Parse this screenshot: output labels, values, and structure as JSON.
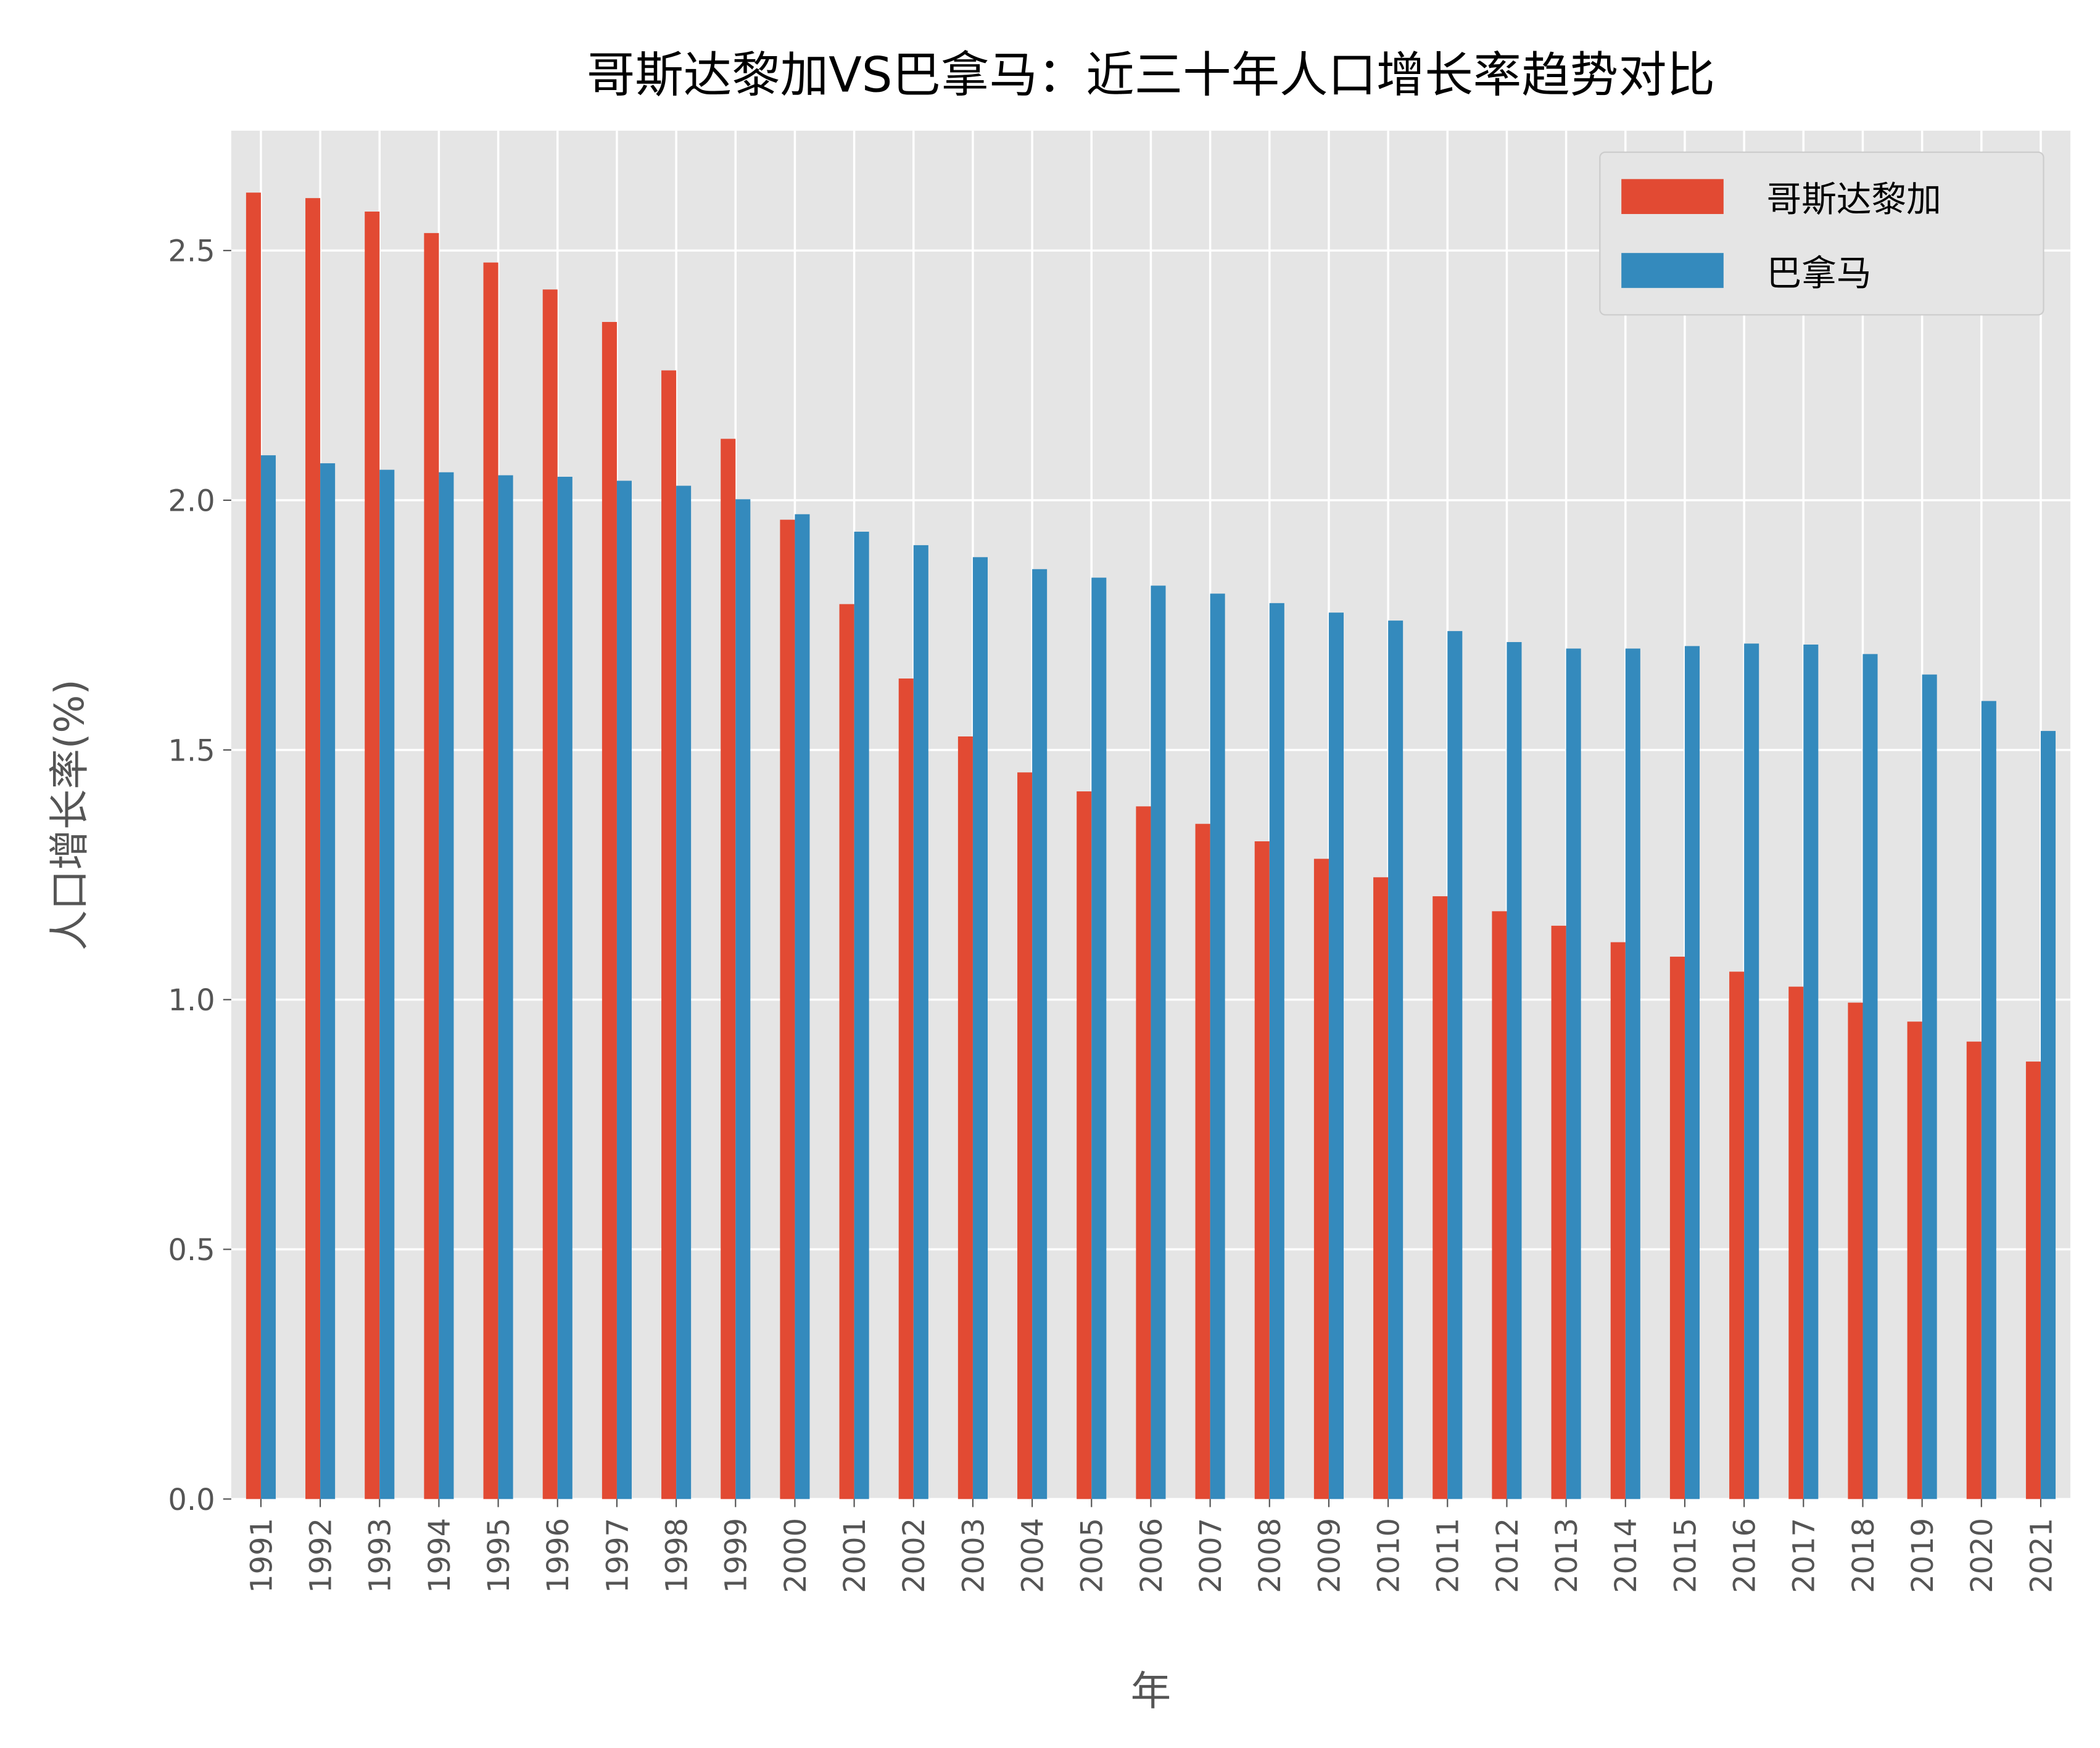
{
  "chart_data": {
    "type": "bar",
    "title": "哥斯达黎加VS巴拿马：近三十年人口增长率趋势对比",
    "xlabel": "年",
    "ylabel": "人口增长率(%)",
    "ylim": [
      0,
      2.74
    ],
    "yticks": [
      "0.0",
      "0.5",
      "1.0",
      "1.5",
      "2.0",
      "2.5"
    ],
    "grid": true,
    "legend_position": "top-right",
    "categories": [
      "1991",
      "1992",
      "1993",
      "1994",
      "1995",
      "1996",
      "1997",
      "1998",
      "1999",
      "2000",
      "2001",
      "2002",
      "2003",
      "2004",
      "2005",
      "2006",
      "2007",
      "2008",
      "2009",
      "2010",
      "2011",
      "2012",
      "2013",
      "2014",
      "2015",
      "2016",
      "2017",
      "2018",
      "2019",
      "2020",
      "2021"
    ],
    "series": [
      {
        "name": "哥斯达黎加",
        "color": "#E24A33",
        "values": [
          2.616,
          2.605,
          2.578,
          2.535,
          2.476,
          2.422,
          2.357,
          2.26,
          2.123,
          1.961,
          1.792,
          1.643,
          1.527,
          1.455,
          1.417,
          1.387,
          1.352,
          1.317,
          1.282,
          1.245,
          1.207,
          1.177,
          1.148,
          1.115,
          1.086,
          1.056,
          1.026,
          0.994,
          0.956,
          0.916,
          0.876
        ]
      },
      {
        "name": "巴拿马",
        "color": "#348ABD",
        "values": [
          2.09,
          2.074,
          2.061,
          2.056,
          2.05,
          2.047,
          2.039,
          2.029,
          2.002,
          1.972,
          1.937,
          1.91,
          1.886,
          1.862,
          1.845,
          1.829,
          1.813,
          1.794,
          1.775,
          1.759,
          1.738,
          1.716,
          1.703,
          1.703,
          1.708,
          1.713,
          1.711,
          1.692,
          1.651,
          1.598,
          1.538
        ]
      }
    ]
  }
}
